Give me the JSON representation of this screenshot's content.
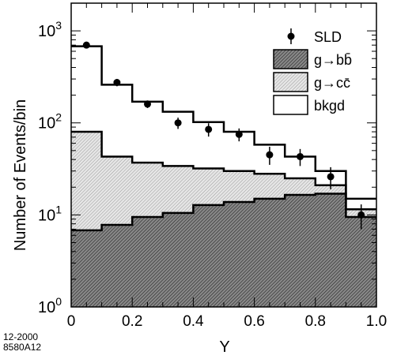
{
  "chart_data": {
    "type": "bar",
    "xlabel": "Y",
    "ylabel": "Number of Events/bin",
    "xlim": [
      0,
      1.0
    ],
    "ylim": [
      1,
      2000
    ],
    "yscale": "log",
    "bin_edges": [
      0,
      0.1,
      0.2,
      0.3,
      0.4,
      0.5,
      0.6,
      0.7,
      0.8,
      0.9,
      1.0
    ],
    "x_ticks": [
      "0",
      "0.2",
      "0.4",
      "0.6",
      "0.8",
      "1.0"
    ],
    "y_ticks": [
      {
        "base": "10",
        "exp": "0"
      },
      {
        "base": "10",
        "exp": "1"
      },
      {
        "base": "10",
        "exp": "2"
      },
      {
        "base": "10",
        "exp": "3"
      }
    ],
    "series": [
      {
        "name": "g→bb̄",
        "type": "stacked-histogram",
        "values": [
          6.8,
          7.8,
          9.5,
          10.5,
          12.8,
          13.8,
          15,
          16.5,
          17,
          9.5
        ]
      },
      {
        "name": "g→cc̄",
        "type": "stacked-histogram-cumulative",
        "values": [
          80,
          43,
          37,
          34,
          32,
          30,
          28,
          25,
          21,
          11.5
        ]
      },
      {
        "name": "bkgd",
        "type": "stacked-histogram-cumulative",
        "values": [
          680,
          260,
          170,
          132,
          102,
          80,
          58,
          43,
          30,
          15
        ]
      },
      {
        "name": "SLD",
        "type": "data-points",
        "x": [
          0.05,
          0.15,
          0.25,
          0.35,
          0.45,
          0.55,
          0.65,
          0.75,
          0.85,
          0.95
        ],
        "values": [
          700,
          275,
          160,
          100,
          85,
          75,
          45,
          43,
          26,
          10
        ],
        "errors": [
          50,
          25,
          15,
          14,
          14,
          12,
          10,
          9,
          7,
          3
        ]
      }
    ],
    "legend": {
      "position": "top-right",
      "entries": [
        {
          "label": "SLD",
          "symbol": "point"
        },
        {
          "label": "g→bb̄",
          "symbol": "dark-hatch"
        },
        {
          "label": "g→cc̄",
          "symbol": "light-hatch"
        },
        {
          "label": "bkgd",
          "symbol": "open"
        }
      ]
    },
    "annotations": [
      "12-2000",
      "8580A12"
    ],
    "grid": false
  }
}
